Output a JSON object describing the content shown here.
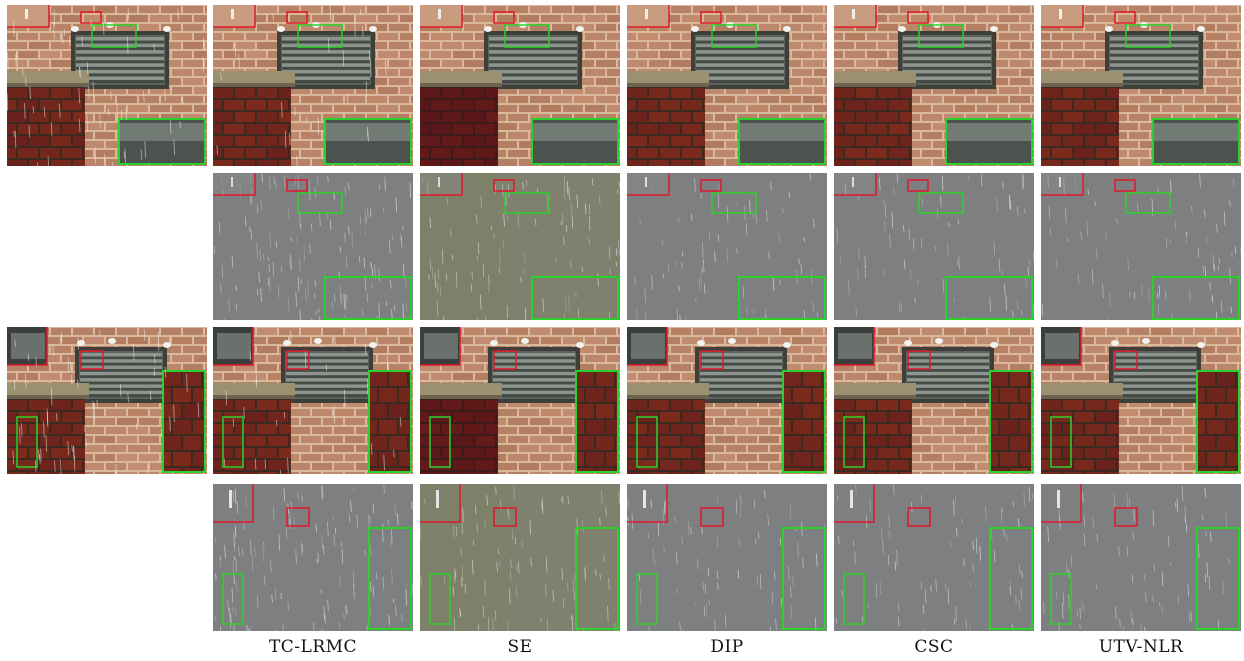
{
  "figure": {
    "column_labels": [
      "TC-LRMC",
      "SE",
      "DIP",
      "CSC",
      "UTV-NLR"
    ],
    "rows": [
      {
        "kind": "scene",
        "view": "top",
        "columns": [
          "input",
          "TC-LRMC",
          "SE",
          "DIP",
          "CSC",
          "UTV-NLR"
        ]
      },
      {
        "kind": "rain",
        "view": "top",
        "columns": [
          "TC-LRMC",
          "SE",
          "DIP",
          "CSC",
          "UTV-NLR"
        ]
      },
      {
        "kind": "scene",
        "view": "bottom",
        "columns": [
          "input",
          "TC-LRMC",
          "SE",
          "DIP",
          "CSC",
          "UTV-NLR"
        ]
      },
      {
        "kind": "rain",
        "view": "bottom",
        "columns": [
          "TC-LRMC",
          "SE",
          "DIP",
          "CSC",
          "UTV-NLR"
        ]
      }
    ],
    "highlight_colors": {
      "red_box": "#e0192a",
      "green_box": "#2bd12b"
    }
  }
}
